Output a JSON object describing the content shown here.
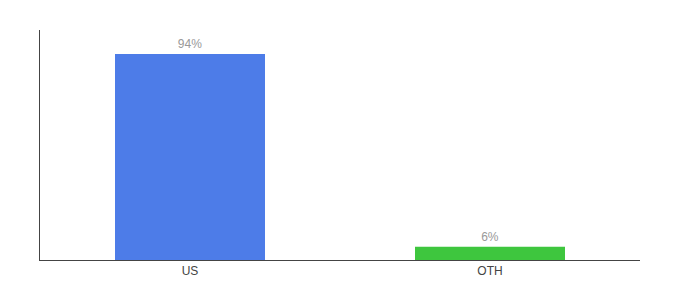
{
  "chart_data": {
    "type": "bar",
    "categories": [
      "US",
      "OTH"
    ],
    "values": [
      94,
      6
    ],
    "value_labels": [
      "94%",
      "6%"
    ],
    "data_labels": true,
    "colors": [
      "#4d7ce8",
      "#3ec63e"
    ],
    "ylim": [
      0,
      105
    ],
    "yticks": [],
    "tick_labels": "x",
    "grid": false
  }
}
